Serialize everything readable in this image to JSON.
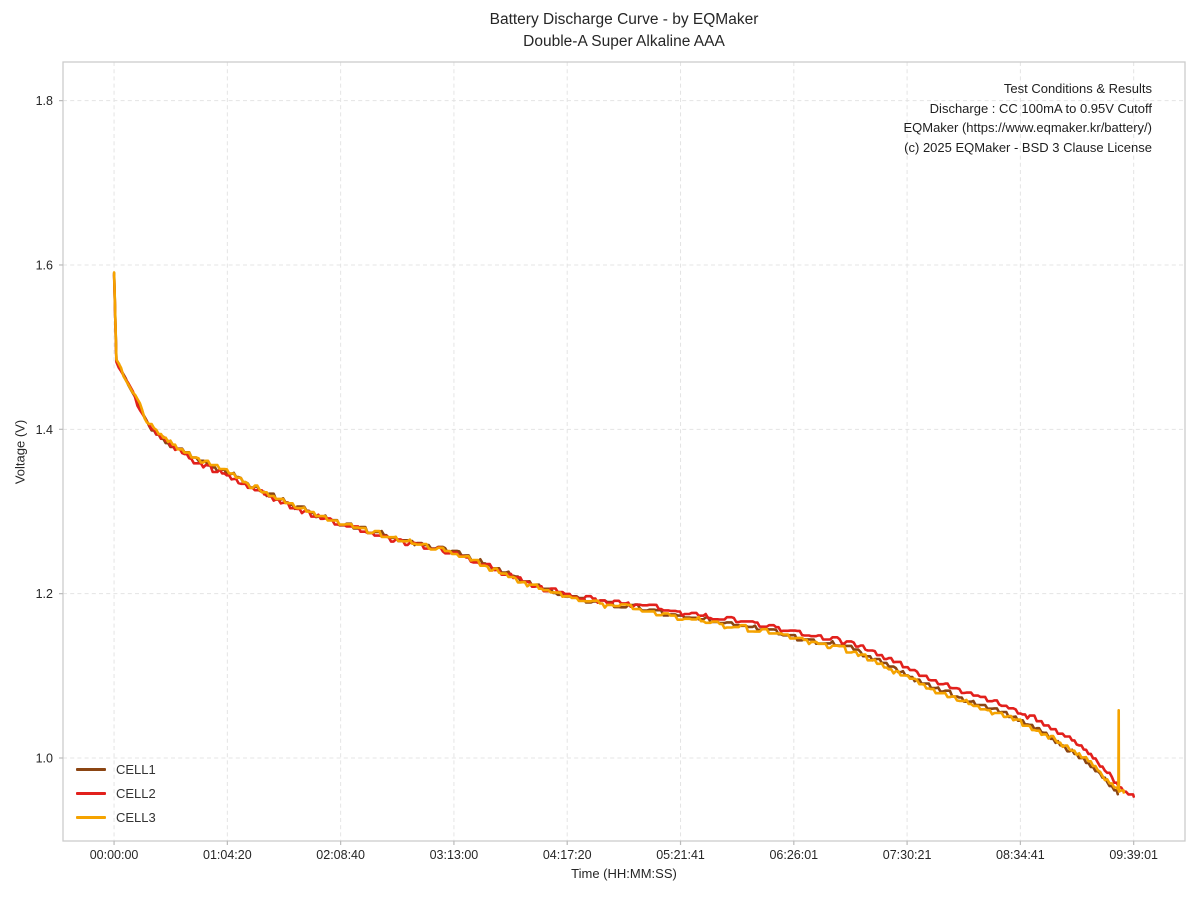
{
  "chart_data": {
    "type": "line",
    "title": "Battery Discharge Curve - by EQMaker",
    "subtitle": "Double-A Super Alkaline AAA",
    "xlabel": "Time (HH:MM:SS)",
    "ylabel": "Voltage (V)",
    "annotation": [
      "Test Conditions & Results",
      "Discharge : CC 100mA to 0.95V Cutoff",
      "EQMaker (https://www.eqmaker.kr/battery/)",
      "(c) 2025 EQMaker - BSD 3 Clause License"
    ],
    "x_ticks": [
      {
        "label": "00:00:00",
        "seconds": 0
      },
      {
        "label": "01:04:20",
        "seconds": 3860
      },
      {
        "label": "02:08:40",
        "seconds": 7720
      },
      {
        "label": "03:13:00",
        "seconds": 11580
      },
      {
        "label": "04:17:20",
        "seconds": 15440
      },
      {
        "label": "05:21:41",
        "seconds": 19301
      },
      {
        "label": "06:26:01",
        "seconds": 23161
      },
      {
        "label": "07:30:21",
        "seconds": 27021
      },
      {
        "label": "08:34:41",
        "seconds": 30881
      },
      {
        "label": "09:39:01",
        "seconds": 34741
      }
    ],
    "y_ticks": [
      {
        "label": "1.0",
        "value": 1.0
      },
      {
        "label": "1.2",
        "value": 1.2
      },
      {
        "label": "1.4",
        "value": 1.4
      },
      {
        "label": "1.6",
        "value": 1.6
      },
      {
        "label": "1.8",
        "value": 1.8
      }
    ],
    "xlim_seconds": [
      -1740,
      36490
    ],
    "ylim": [
      0.899,
      1.847
    ],
    "grid": true,
    "legend_position": "lower-left",
    "colors": {
      "grid": "#e4e4e4",
      "spine": "#cccccc",
      "tick": "#bbbbbb",
      "text": "#262626"
    },
    "base_curve_t_v": [
      [
        0,
        1.59
      ],
      [
        40,
        1.487
      ],
      [
        300,
        1.467
      ],
      [
        600,
        1.449
      ],
      [
        900,
        1.426
      ],
      [
        1200,
        1.405
      ],
      [
        1930,
        1.382
      ],
      [
        2700,
        1.365
      ],
      [
        3860,
        1.347
      ],
      [
        4800,
        1.329
      ],
      [
        5800,
        1.313
      ],
      [
        6800,
        1.298
      ],
      [
        7720,
        1.287
      ],
      [
        8700,
        1.277
      ],
      [
        9650,
        1.268
      ],
      [
        10600,
        1.259
      ],
      [
        11580,
        1.251
      ],
      [
        12500,
        1.238
      ],
      [
        13500,
        1.223
      ],
      [
        14500,
        1.208
      ],
      [
        15440,
        1.197
      ],
      [
        16400,
        1.191
      ],
      [
        17400,
        1.186
      ],
      [
        18300,
        1.181
      ],
      [
        19301,
        1.174
      ],
      [
        20300,
        1.168
      ],
      [
        21300,
        1.162
      ],
      [
        22200,
        1.156
      ],
      [
        23161,
        1.149
      ],
      [
        24100,
        1.142
      ],
      [
        25100,
        1.134
      ],
      [
        26000,
        1.12
      ],
      [
        27021,
        1.102
      ],
      [
        28000,
        1.086
      ],
      [
        29000,
        1.073
      ],
      [
        30000,
        1.061
      ],
      [
        30881,
        1.048
      ],
      [
        31800,
        1.031
      ],
      [
        32600,
        1.013
      ],
      [
        33270,
        0.996
      ],
      [
        33800,
        0.977
      ],
      [
        34200,
        0.961
      ],
      [
        34500,
        0.952
      ],
      [
        34741,
        0.948
      ]
    ],
    "series": [
      {
        "name": "CELL1",
        "color": "#8B4513",
        "t_end": 34200,
        "v_end": 0.956,
        "offset_t_dv": [
          [
            0,
            0.0
          ],
          [
            26000,
            -0.001
          ],
          [
            30000,
            -0.002
          ],
          [
            34200,
            -0.005
          ]
        ],
        "spike": null
      },
      {
        "name": "CELL2",
        "color": "#E2201C",
        "t_end": 34741,
        "v_end": 0.953,
        "offset_t_dv": [
          [
            0,
            -0.002
          ],
          [
            10000,
            -0.003
          ],
          [
            15000,
            0.001
          ],
          [
            20000,
            0.004
          ],
          [
            25000,
            0.006
          ],
          [
            30000,
            0.008
          ],
          [
            33000,
            0.009
          ],
          [
            34741,
            0.005
          ]
        ],
        "spike": null
      },
      {
        "name": "CELL3",
        "color": "#F5A300",
        "t_end": 34400,
        "v_end": 0.958,
        "offset_t_dv": [
          [
            0,
            0.001
          ],
          [
            15000,
            -0.002
          ],
          [
            25000,
            -0.003
          ],
          [
            30000,
            -0.005
          ],
          [
            34000,
            -0.001
          ],
          [
            34400,
            0.003
          ]
        ],
        "spike": {
          "t": 34230,
          "v": 1.058
        }
      }
    ],
    "start_spike_v": 1.59,
    "render": {
      "quantize_v": 0.005,
      "noise_amp": 0.002,
      "line_width": 2.6
    }
  }
}
